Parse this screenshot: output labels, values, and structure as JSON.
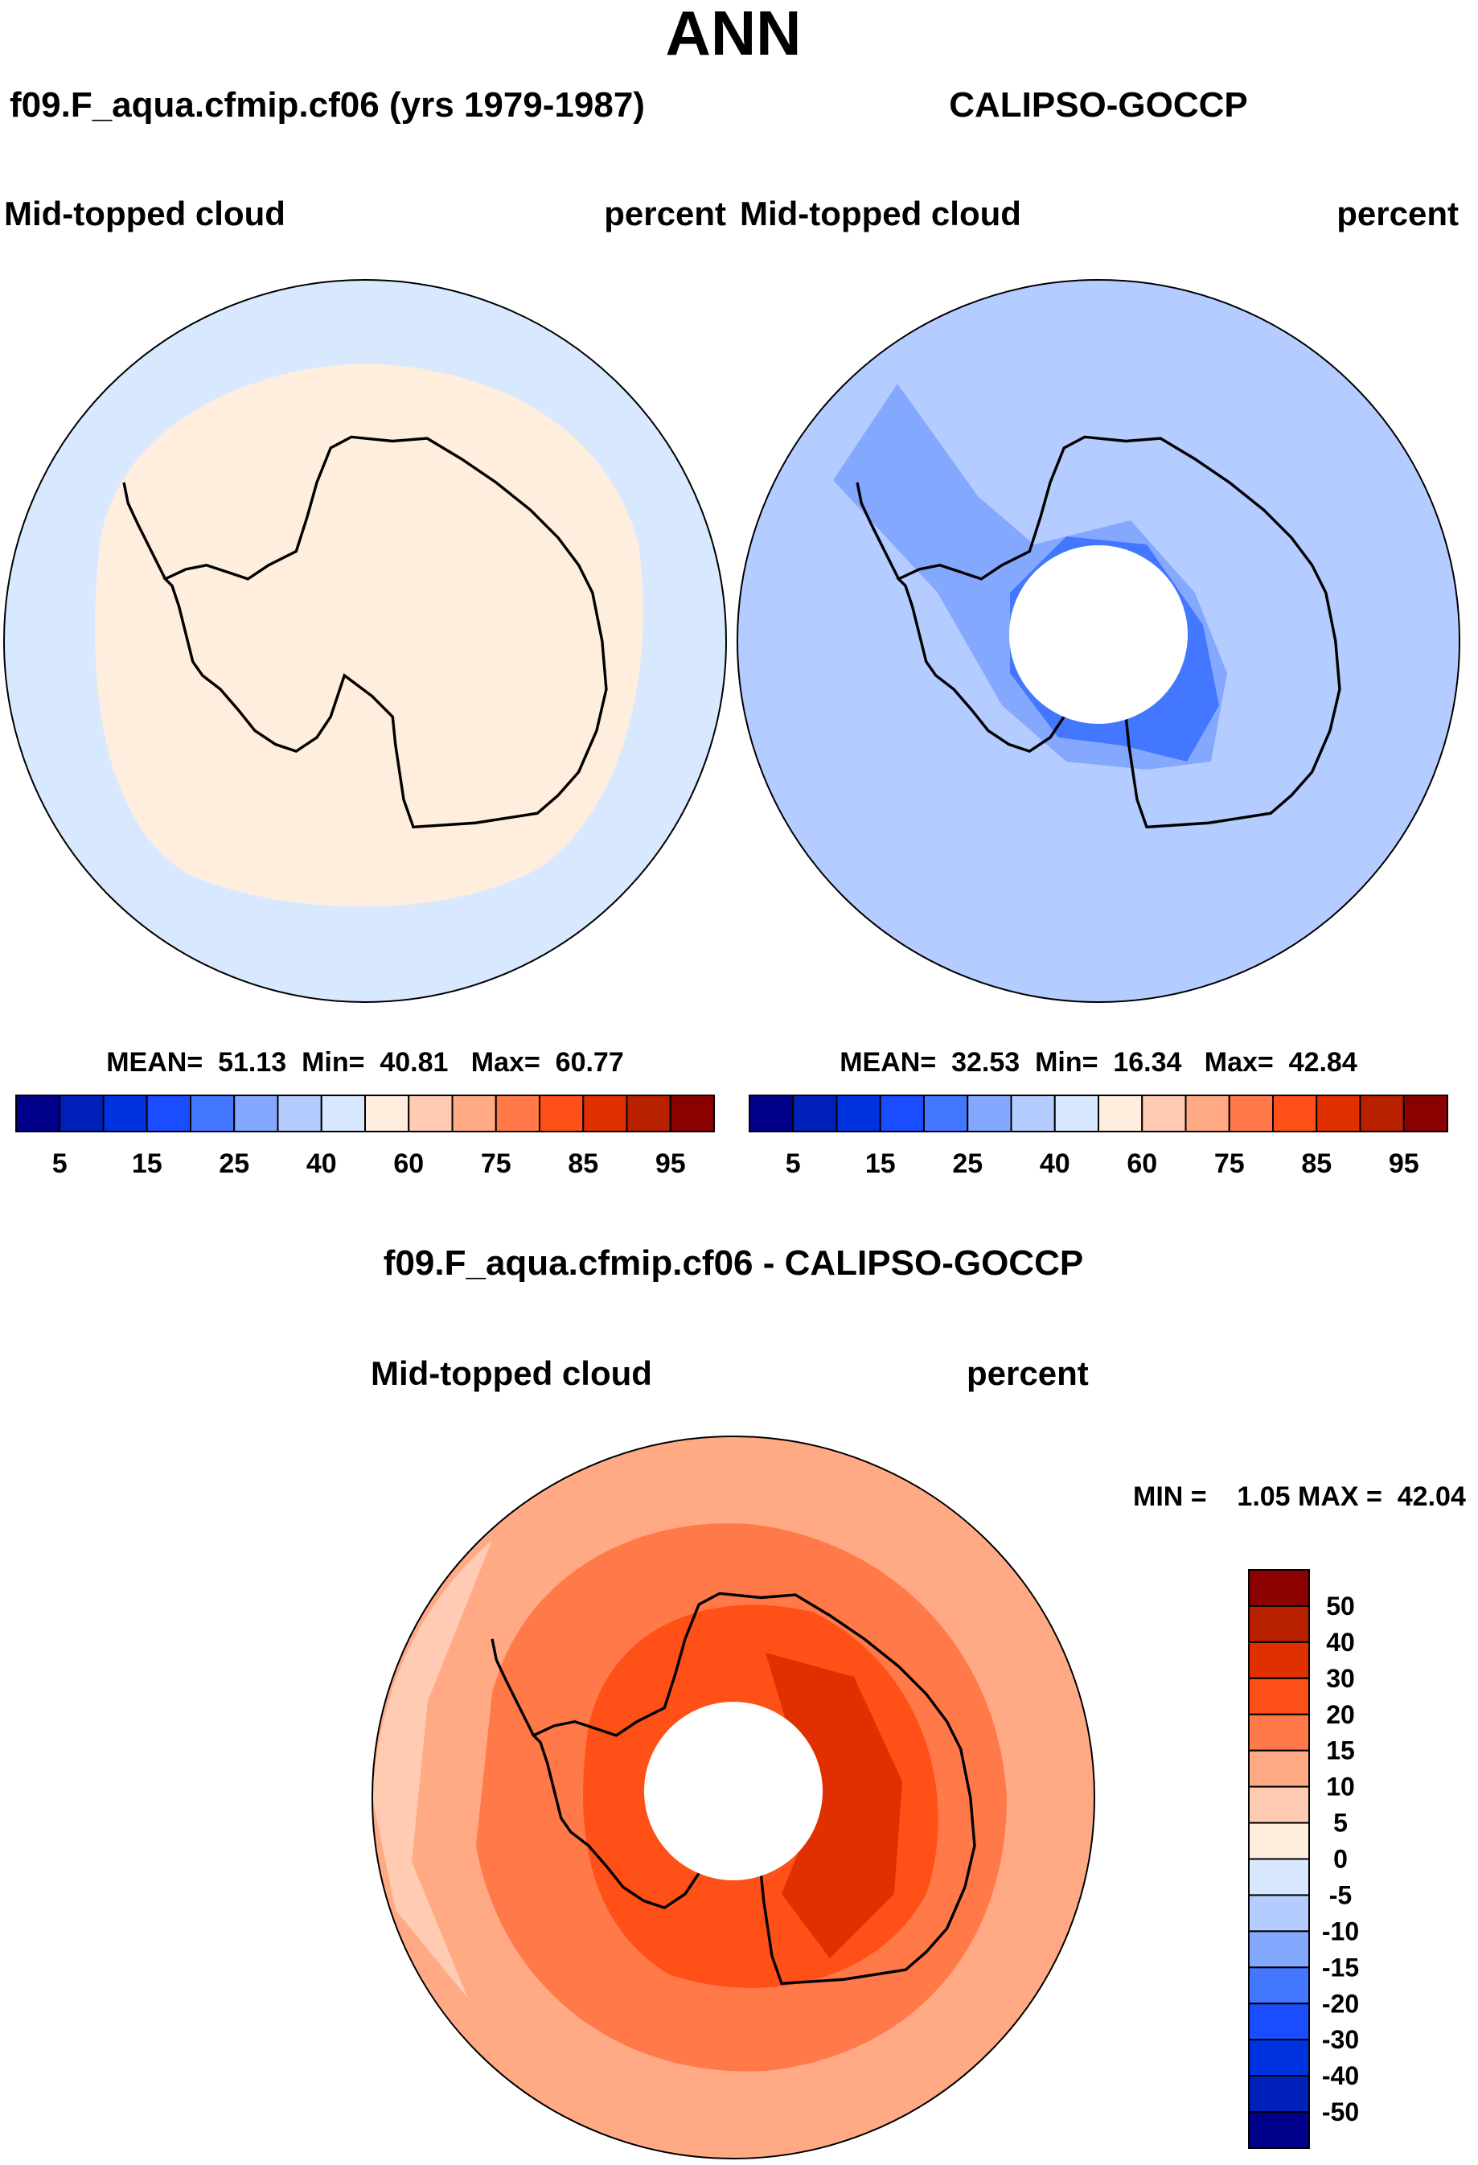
{
  "title": "ANN",
  "panels": [
    {
      "subtitle": "f09.F_aqua.cfmip.cf06 (yrs 1979-1987)",
      "variable": "Mid-topped cloud",
      "units": "percent",
      "stats": "MEAN=  51.13  Min=  40.81   Max=  60.77",
      "dominant_color": "#ffeedd",
      "ocean_color": "#d8e9ff"
    },
    {
      "subtitle": "CALIPSO-GOCCP",
      "variable": "Mid-topped cloud",
      "units": "percent",
      "stats": "MEAN=  32.53  Min=  16.34   Max=  42.84",
      "dominant_color": "#b4ccff",
      "ocean_color": "#b4ccff"
    }
  ],
  "diff": {
    "title": "f09.F_aqua.cfmip.cf06 - CALIPSO-GOCCP",
    "variable": "Mid-topped cloud",
    "units": "percent",
    "stats": "MIN =    1.05 MAX =  42.04"
  },
  "colorbar": {
    "colors": [
      "#00008b",
      "#0021b9",
      "#0033e0",
      "#1a4dff",
      "#4477ff",
      "#85a8ff",
      "#b4ccff",
      "#d8e9ff",
      "#ffeedd",
      "#ffccb3",
      "#ffaa85",
      "#ff7a48",
      "#ff5018",
      "#e03000",
      "#b82000",
      "#8b0000"
    ],
    "labels": [
      "5",
      "15",
      "25",
      "40",
      "60",
      "75",
      "85",
      "95"
    ],
    "diff_labels": [
      "50",
      "40",
      "30",
      "20",
      "15",
      "10",
      "5",
      "0",
      "-5",
      "-10",
      "-15",
      "-20",
      "-30",
      "-40",
      "-50"
    ]
  }
}
